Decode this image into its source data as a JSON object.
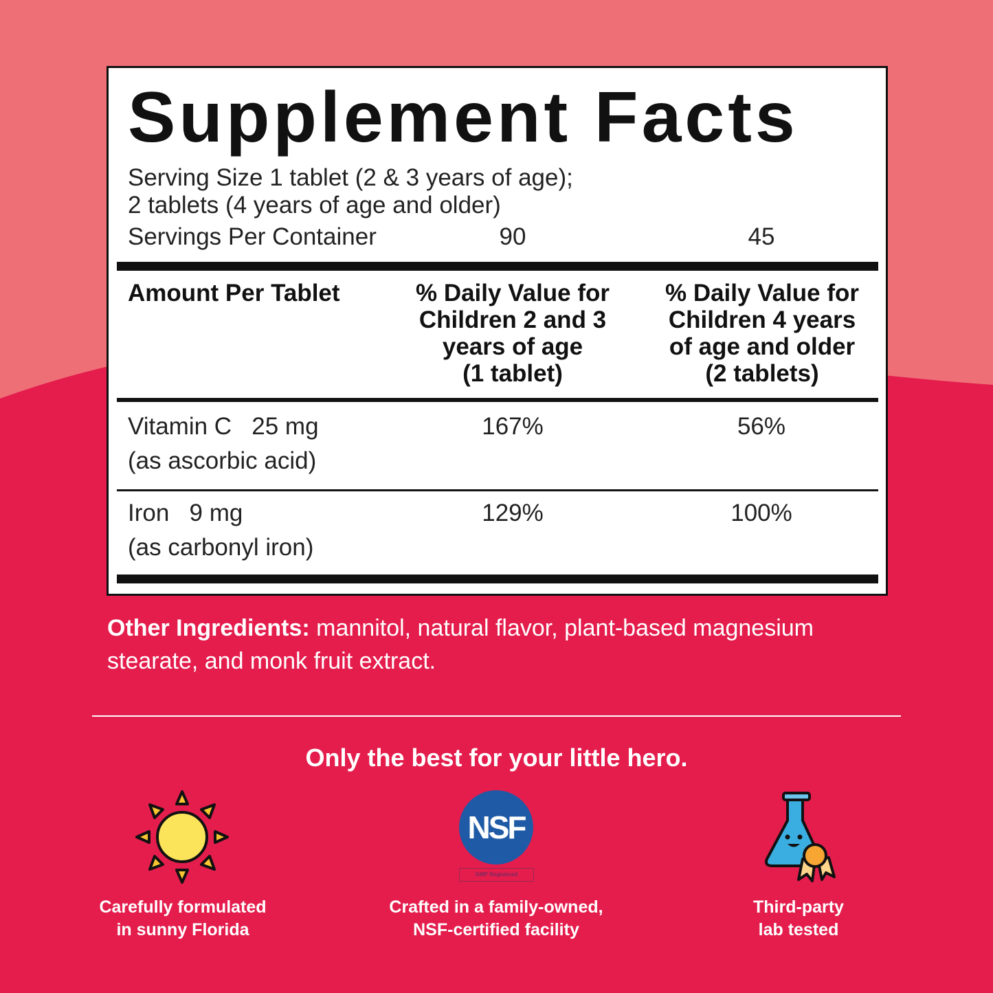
{
  "colors": {
    "background_top": "#ee7076",
    "background_bottom": "#e41d4d",
    "panel": "#ffffff",
    "nsf_blue": "#1f5aa6"
  },
  "facts": {
    "title": "Supplement Facts",
    "serving_size_line1": "Serving Size 1 tablet (2 & 3 years of age);",
    "serving_size_line2": "2 tablets (4 years of age and older)",
    "servings_label": "Servings Per Container",
    "servings_col1": "90",
    "servings_col2": "45",
    "header_amount": "Amount Per Tablet",
    "header_col1": [
      "% Daily Value for",
      "Children 2 and 3",
      "years of age",
      "(1 tablet)"
    ],
    "header_col2": [
      "% Daily Value for",
      "Children 4 years",
      "of age and older",
      "(2 tablets)"
    ],
    "rows": [
      {
        "name": "Vitamin C",
        "amount": "25 mg",
        "source": "(as ascorbic acid)",
        "dv1": "167%",
        "dv2": "56%"
      },
      {
        "name": "Iron",
        "amount": "9 mg",
        "source": "(as carbonyl iron)",
        "dv1": "129%",
        "dv2": "100%"
      }
    ]
  },
  "other_ingredients": {
    "label": "Other Ingredients:",
    "text": " mannitol, natural flavor, plant-based magnesium stearate, and monk fruit extract."
  },
  "tagline": "Only the best for your little hero.",
  "features": [
    {
      "icon": "sun-icon",
      "caption1": "Carefully formulated",
      "caption2": "in sunny Florida"
    },
    {
      "icon": "nsf-logo",
      "logo_text": "NSF",
      "logo_sub": "GMP Registered",
      "caption1": "Crafted in a family-owned,",
      "caption2": "NSF-certified facility"
    },
    {
      "icon": "flask-icon",
      "caption1": "Third-party",
      "caption2": "lab tested"
    }
  ]
}
